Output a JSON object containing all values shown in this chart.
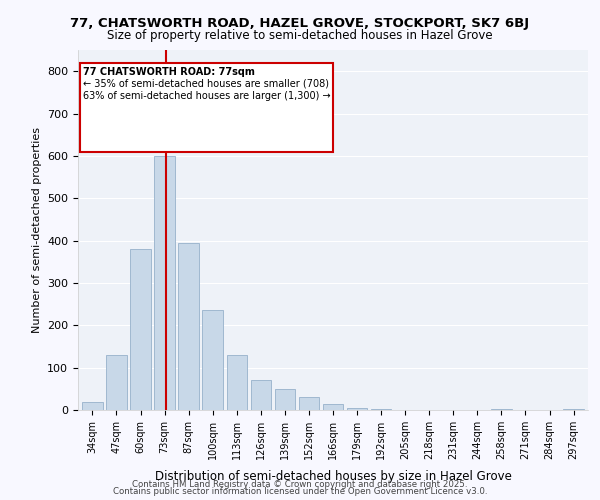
{
  "title1": "77, CHATSWORTH ROAD, HAZEL GROVE, STOCKPORT, SK7 6BJ",
  "title2": "Size of property relative to semi-detached houses in Hazel Grove",
  "xlabel": "Distribution of semi-detached houses by size in Hazel Grove",
  "ylabel": "Number of semi-detached properties",
  "categories": [
    "34sqm",
    "47sqm",
    "60sqm",
    "73sqm",
    "87sqm",
    "100sqm",
    "113sqm",
    "126sqm",
    "139sqm",
    "152sqm",
    "166sqm",
    "179sqm",
    "192sqm",
    "205sqm",
    "218sqm",
    "231sqm",
    "244sqm",
    "258sqm",
    "271sqm",
    "284sqm",
    "297sqm"
  ],
  "values": [
    20,
    130,
    380,
    600,
    395,
    235,
    130,
    70,
    50,
    30,
    15,
    5,
    3,
    1,
    0,
    0,
    0,
    3,
    0,
    0,
    3
  ],
  "bar_color": "#c8d8e8",
  "bar_edge_color": "#a0b8d0",
  "property_size": 77,
  "property_bin_index": 3,
  "annotation_title": "77 CHATSWORTH ROAD: 77sqm",
  "annotation_line1": "← 35% of semi-detached houses are smaller (708)",
  "annotation_line2": "63% of semi-detached houses are larger (1,300) →",
  "vline_color": "#cc0000",
  "annotation_box_color": "#ffdddd",
  "annotation_box_edge": "#cc0000",
  "ylim": [
    0,
    850
  ],
  "yticks": [
    0,
    100,
    200,
    300,
    400,
    500,
    600,
    700,
    800
  ],
  "background_color": "#eef2f8",
  "footer_line1": "Contains HM Land Registry data © Crown copyright and database right 2025.",
  "footer_line2": "Contains public sector information licensed under the Open Government Licence v3.0."
}
